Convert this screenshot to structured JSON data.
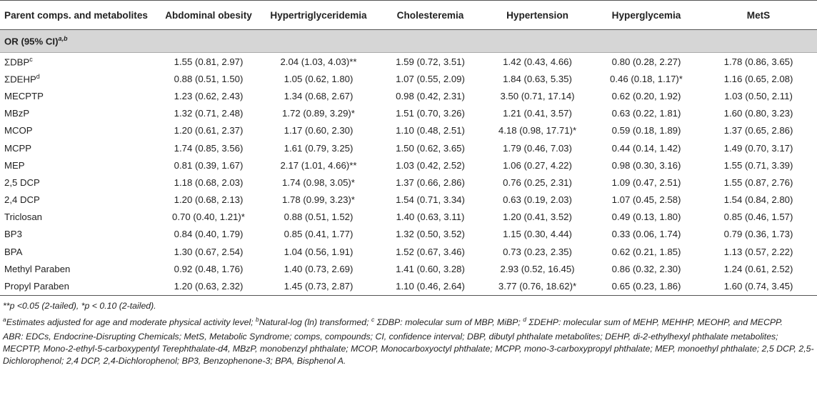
{
  "table": {
    "headers": [
      "Parent comps. and metabolites",
      "Abdominal obesity",
      "Hypertriglyceridemia",
      "Cholesteremia",
      "Hypertension",
      "Hyperglycemia",
      "MetS"
    ],
    "section_label": "OR (95% CI)",
    "section_sup": "a,b",
    "rows": [
      {
        "name": "ΣDBP",
        "sup": "c",
        "values": [
          "1.55 (0.81, 2.97)",
          "2.04 (1.03, 4.03)**",
          "1.59 (0.72, 3.51)",
          "1.42 (0.43, 4.66)",
          "0.80 (0.28, 2.27)",
          "1.78 (0.86, 3.65)"
        ]
      },
      {
        "name": "ΣDEHP",
        "sup": "d",
        "values": [
          "0.88 (0.51, 1.50)",
          "1.05 (0.62, 1.80)",
          "1.07 (0.55, 2.09)",
          "1.84 (0.63, 5.35)",
          "0.46 (0.18, 1.17)*",
          "1.16 (0.65, 2.08)"
        ]
      },
      {
        "name": "MECPTP",
        "sup": "",
        "values": [
          "1.23 (0.62, 2.43)",
          "1.34 (0.68, 2.67)",
          "0.98 (0.42, 2.31)",
          "3.50 (0.71, 17.14)",
          "0.62 (0.20, 1.92)",
          "1.03 (0.50, 2.11)"
        ]
      },
      {
        "name": "MBzP",
        "sup": "",
        "values": [
          "1.32 (0.71, 2.48)",
          "1.72 (0.89, 3.29)*",
          "1.51 (0.70, 3.26)",
          "1.21 (0.41, 3.57)",
          "0.63 (0.22, 1.81)",
          "1.60 (0.80, 3.23)"
        ]
      },
      {
        "name": "MCOP",
        "sup": "",
        "values": [
          "1.20 (0.61, 2.37)",
          "1.17 (0.60, 2.30)",
          "1.10 (0.48, 2.51)",
          "4.18 (0.98, 17.71)*",
          "0.59 (0.18, 1.89)",
          "1.37 (0.65, 2.86)"
        ]
      },
      {
        "name": "MCPP",
        "sup": "",
        "values": [
          "1.74 (0.85, 3.56)",
          "1.61 (0.79, 3.25)",
          "1.50 (0.62, 3.65)",
          "1.79 (0.46, 7.03)",
          "0.44 (0.14, 1.42)",
          "1.49 (0.70, 3.17)"
        ]
      },
      {
        "name": "MEP",
        "sup": "",
        "values": [
          "0.81 (0.39, 1.67)",
          "2.17 (1.01, 4.66)**",
          "1.03 (0.42, 2.52)",
          "1.06 (0.27, 4.22)",
          "0.98 (0.30, 3.16)",
          "1.55 (0.71, 3.39)"
        ]
      },
      {
        "name": "2,5 DCP",
        "sup": "",
        "values": [
          "1.18 (0.68, 2.03)",
          "1.74 (0.98, 3.05)*",
          "1.37 (0.66, 2.86)",
          "0.76 (0.25, 2.31)",
          "1.09 (0.47, 2.51)",
          "1.55 (0.87, 2.76)"
        ]
      },
      {
        "name": "2,4 DCP",
        "sup": "",
        "values": [
          "1.20 (0.68, 2.13)",
          "1.78 (0.99, 3.23)*",
          "1.54 (0.71, 3.34)",
          "0.63 (0.19, 2.03)",
          "1.07 (0.45, 2.58)",
          "1.54 (0.84, 2.80)"
        ]
      },
      {
        "name": "Triclosan",
        "sup": "",
        "values": [
          "0.70 (0.40, 1.21)*",
          "0.88 (0.51, 1.52)",
          "1.40 (0.63, 3.11)",
          "1.20 (0.41, 3.52)",
          "0.49 (0.13, 1.80)",
          "0.85 (0.46, 1.57)"
        ]
      },
      {
        "name": "BP3",
        "sup": "",
        "values": [
          "0.84 (0.40, 1.79)",
          "0.85 (0.41, 1.77)",
          "1.32 (0.50, 3.52)",
          "1.15 (0.30, 4.44)",
          "0.33 (0.06, 1.74)",
          "0.79 (0.36, 1.73)"
        ]
      },
      {
        "name": "BPA",
        "sup": "",
        "values": [
          "1.30 (0.67, 2.54)",
          "1.04 (0.56, 1.91)",
          "1.52 (0.67, 3.46)",
          "0.73 (0.23, 2.35)",
          "0.62 (0.21, 1.85)",
          "1.13 (0.57, 2.22)"
        ]
      },
      {
        "name": "Methyl Paraben",
        "sup": "",
        "values": [
          "0.92 (0.48, 1.76)",
          "1.40 (0.73, 2.69)",
          "1.41 (0.60, 3.28)",
          "2.93 (0.52, 16.45)",
          "0.86 (0.32, 2.30)",
          "1.24 (0.61, 2.52)"
        ]
      },
      {
        "name": "Propyl Paraben",
        "sup": "",
        "values": [
          "1.20 (0.63, 2.32)",
          "1.45 (0.73, 2.87)",
          "1.10 (0.46, 2.64)",
          "3.77 (0.76, 18.62)*",
          "0.65 (0.23, 1.86)",
          "1.60 (0.74, 3.45)"
        ]
      }
    ]
  },
  "notes": {
    "significance": "**p <0.05 (2-tailed), *p < 0.10 (2-tailed).",
    "fn_a_mark": "a",
    "fn_a": "Estimates adjusted for age and moderate physical activity level; ",
    "fn_b_mark": "b",
    "fn_b": "Natural-log (ln) transformed; ",
    "fn_c_mark": "c",
    "fn_c": " ΣDBP: molecular sum of MBP, MiBP; ",
    "fn_d_mark": "d",
    "fn_d": " ΣDEHP: molecular sum of MEHP, MEHHP, MEOHP, and MECPP.",
    "abbreviations": "ABR: EDCs, Endocrine-Disrupting Chemicals; MetS, Metabolic Syndrome; comps, compounds; CI, confidence interval; DBP, dibutyl phthalate metabolites; DEHP, di-2-ethylhexyl phthalate metabolites; MECPTP, Mono-2-ethyl-5-carboxypentyl Terephthalate-d4, MBzP, monobenzyl phthalate; MCOP, Monocarboxyoctyl phthalate; MCPP, mono-3-carboxypropyl phthalate; MEP, monoethyl phthalate; 2,5 DCP, 2,5-Dichlorophenol; 2,4 DCP, 2,4-Dichlorophenol; BP3, Benzophenone-3; BPA, Bisphenol A."
  }
}
